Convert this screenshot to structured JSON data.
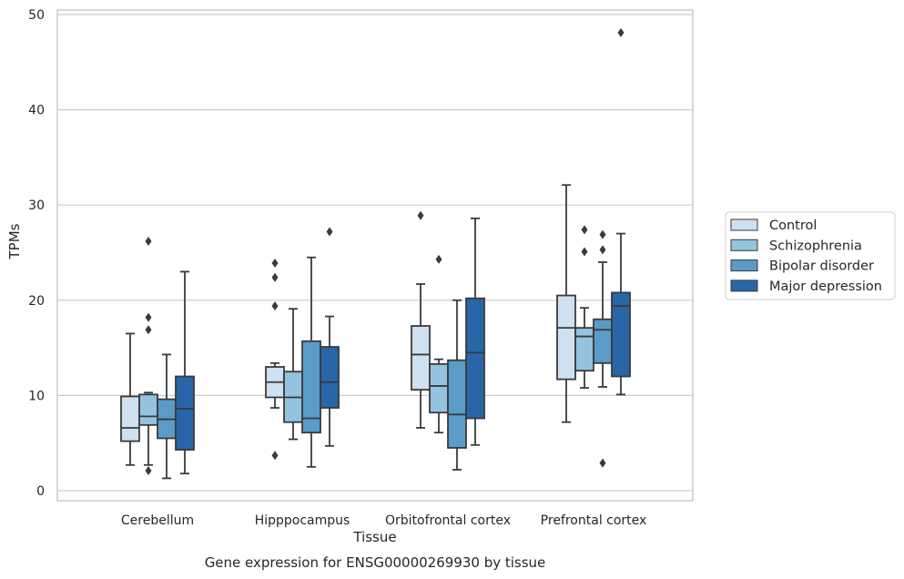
{
  "caption": "Gene expression for ENSG00000269930 by tissue",
  "chart_data": {
    "type": "box",
    "title": "",
    "xlabel": "Tissue",
    "ylabel": "TPMs",
    "ylim": [
      -1,
      50.5
    ],
    "yticks": [
      0,
      10,
      20,
      30,
      40,
      50
    ],
    "grid": "horizontal",
    "legend_position": "right",
    "categories": [
      "Cerebellum",
      "Hipppocampus",
      "Orbitofrontal cortex",
      "Prefrontal cortex"
    ],
    "series": [
      {
        "name": "Control",
        "color": "#cfe0f0",
        "boxes": [
          {
            "whislo": 2.7,
            "q1": 5.2,
            "med": 6.6,
            "q3": 9.9,
            "whishi": 16.5,
            "fliers": []
          },
          {
            "whislo": 8.7,
            "q1": 9.8,
            "med": 11.4,
            "q3": 13.0,
            "whishi": 13.4,
            "fliers": [
              3.7,
              19.4,
              22.4,
              23.9
            ]
          },
          {
            "whislo": 6.6,
            "q1": 10.6,
            "med": 14.3,
            "q3": 17.3,
            "whishi": 21.7,
            "fliers": [
              28.9
            ]
          },
          {
            "whislo": 7.2,
            "q1": 11.7,
            "med": 17.1,
            "q3": 20.5,
            "whishi": 32.1,
            "fliers": []
          }
        ]
      },
      {
        "name": "Schizophrenia",
        "color": "#93c3df",
        "boxes": [
          {
            "whislo": 2.7,
            "q1": 6.9,
            "med": 7.8,
            "q3": 10.1,
            "whishi": 10.3,
            "fliers": [
              2.1,
              16.9,
              18.2,
              26.2
            ]
          },
          {
            "whislo": 5.4,
            "q1": 7.2,
            "med": 9.8,
            "q3": 12.5,
            "whishi": 19.1,
            "fliers": []
          },
          {
            "whislo": 6.1,
            "q1": 8.2,
            "med": 11.0,
            "q3": 13.3,
            "whishi": 13.8,
            "fliers": [
              24.3
            ]
          },
          {
            "whislo": 10.8,
            "q1": 12.6,
            "med": 16.2,
            "q3": 17.1,
            "whishi": 19.2,
            "fliers": [
              25.1,
              27.4
            ]
          }
        ]
      },
      {
        "name": "Bipolar disorder",
        "color": "#5a9bc8",
        "boxes": [
          {
            "whislo": 1.3,
            "q1": 5.5,
            "med": 7.5,
            "q3": 9.6,
            "whishi": 14.3,
            "fliers": []
          },
          {
            "whislo": 2.5,
            "q1": 6.1,
            "med": 7.6,
            "q3": 15.7,
            "whishi": 24.5,
            "fliers": []
          },
          {
            "whislo": 2.2,
            "q1": 4.5,
            "med": 8.0,
            "q3": 13.7,
            "whishi": 20.0,
            "fliers": []
          },
          {
            "whislo": 10.9,
            "q1": 13.4,
            "med": 16.9,
            "q3": 18.0,
            "whishi": 24.0,
            "fliers": [
              2.9,
              25.3,
              26.9
            ]
          }
        ]
      },
      {
        "name": "Major depression",
        "color": "#2866a8",
        "boxes": [
          {
            "whislo": 1.8,
            "q1": 4.3,
            "med": 8.6,
            "q3": 12.0,
            "whishi": 23.0,
            "fliers": []
          },
          {
            "whislo": 4.7,
            "q1": 8.7,
            "med": 11.4,
            "q3": 15.1,
            "whishi": 18.3,
            "fliers": [
              27.2
            ]
          },
          {
            "whislo": 4.8,
            "q1": 7.6,
            "med": 14.5,
            "q3": 20.2,
            "whishi": 28.6,
            "fliers": []
          },
          {
            "whislo": 10.1,
            "q1": 12.0,
            "med": 19.4,
            "q3": 20.8,
            "whishi": 27.0,
            "fliers": [
              48.1
            ]
          }
        ]
      }
    ]
  }
}
